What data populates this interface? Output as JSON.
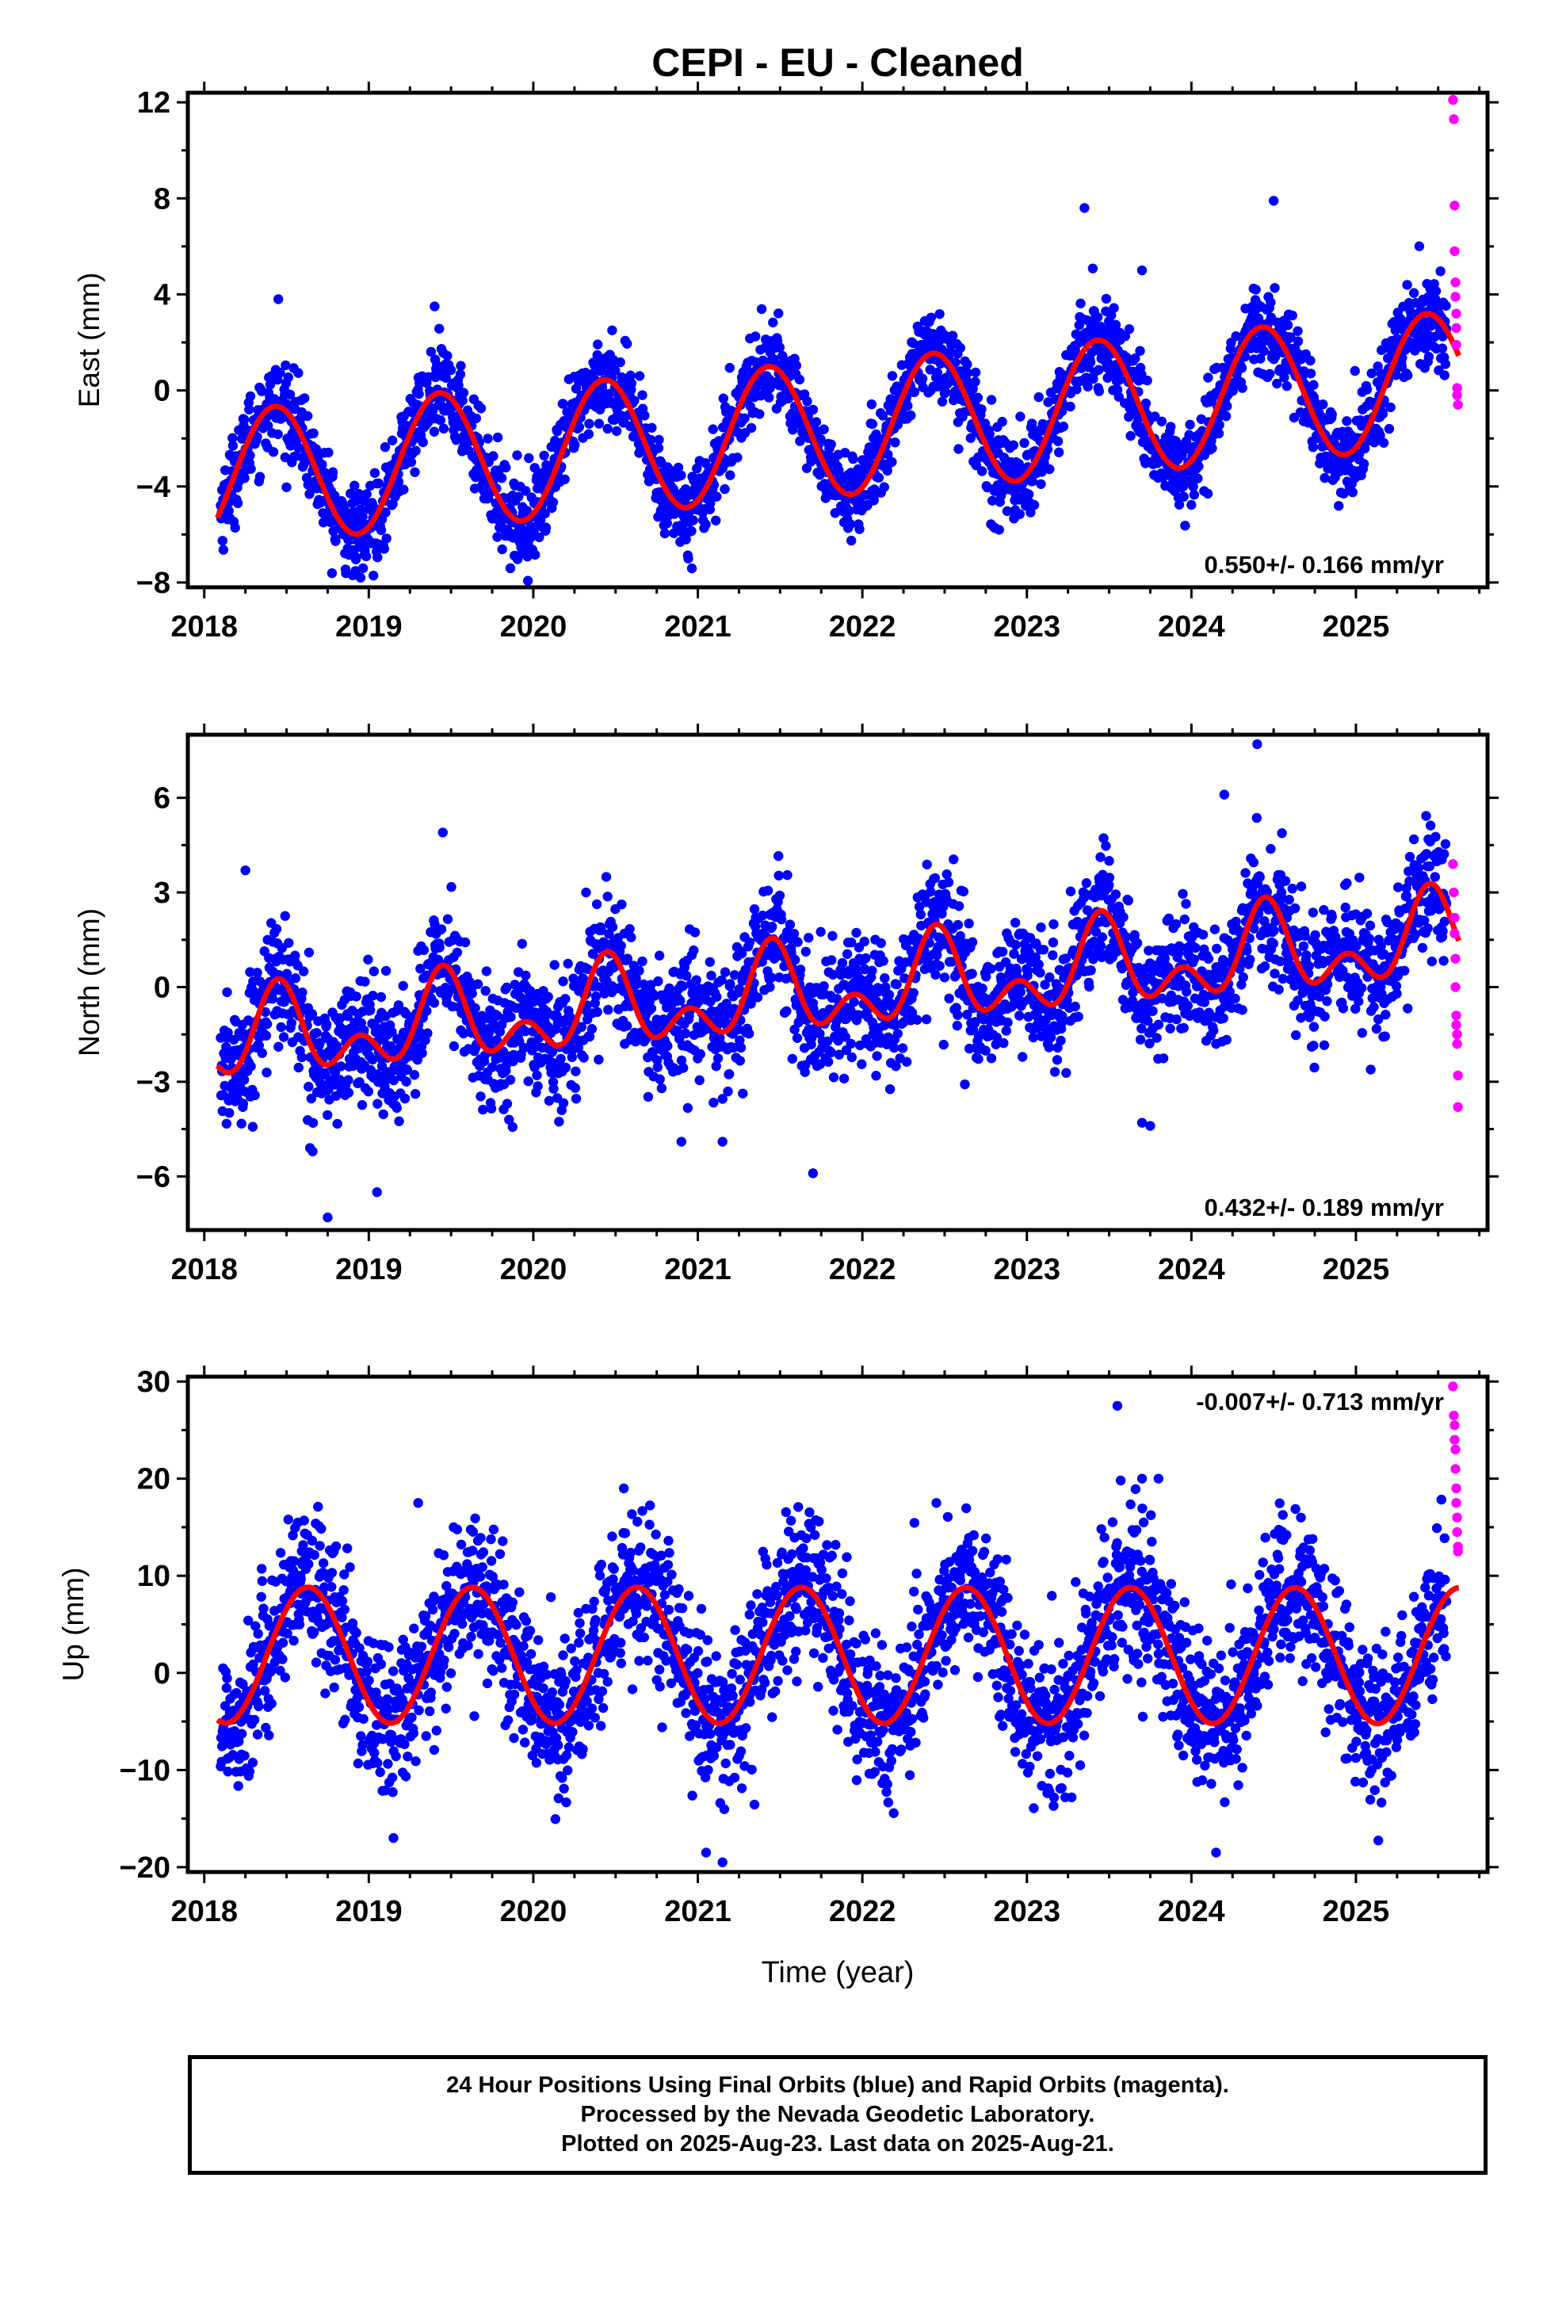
{
  "figure": {
    "title": "CEPI  - EU - Cleaned",
    "xlabel": "Time (year)",
    "colors": {
      "final": "#0000ff",
      "rapid": "#ff00ff",
      "model": "#ff0000",
      "frame": "#000000"
    }
  },
  "chart_data": [
    {
      "type": "scatter",
      "name": "east",
      "ylabel": "East (mm)",
      "xlim": [
        2017.9,
        2025.8
      ],
      "ylim": [
        -8.2,
        12.4
      ],
      "yticks": [
        -8,
        -4,
        0,
        4,
        8,
        12
      ],
      "xticks": [
        2018,
        2019,
        2020,
        2021,
        2022,
        2023,
        2024,
        2025
      ],
      "rate_label": "0.550+/- 0.166 mm/yr",
      "rate_position": "bottom-right",
      "model": {
        "offset": -1.55,
        "slope": 0.55,
        "t0": 2021.9,
        "annual_amp": 2.8,
        "annual_peak": 0.43,
        "semi_amp": 0.0,
        "semi_peak": 0.0
      },
      "noise_sd": 0.9,
      "series": [
        {
          "name": "Final Orbits",
          "color": "#0000ff",
          "x_range": [
            2018.1,
            2025.55
          ]
        },
        {
          "name": "Rapid Orbits",
          "color": "#ff00ff",
          "x": [
            2025.59,
            2025.595,
            2025.6,
            2025.6,
            2025.605,
            2025.605,
            2025.61,
            2025.61,
            2025.61,
            2025.615,
            2025.615,
            2025.62
          ],
          "y": [
            12.1,
            11.3,
            7.7,
            5.8,
            4.5,
            3.9,
            3.2,
            2.6,
            1.9,
            0.1,
            -0.2,
            -0.6
          ]
        }
      ],
      "outliers": {
        "x": [
          2018.45,
          2018.95,
          2019.9,
          2022.8,
          2023.35,
          2024.5,
          2019.4,
          2021.9,
          2023.7,
          2024.1
        ],
        "y": [
          3.8,
          -7.8,
          -6.9,
          -5.7,
          7.6,
          7.9,
          3.5,
          -4.6,
          5.0,
          -4.3
        ]
      }
    },
    {
      "type": "scatter",
      "name": "north",
      "ylabel": "North (mm)",
      "xlim": [
        2017.9,
        2025.8
      ],
      "ylim": [
        -7.7,
        8.0
      ],
      "yticks": [
        -6,
        -3,
        0,
        3,
        6
      ],
      "xticks": [
        2018,
        2019,
        2020,
        2021,
        2022,
        2023,
        2024,
        2025
      ],
      "rate_label": "0.432+/- 0.189 mm/yr",
      "rate_position": "bottom-right",
      "model": {
        "offset": -0.1,
        "slope": 0.432,
        "t0": 2021.9,
        "annual_amp": 1.0,
        "annual_peak": 0.45,
        "semi_amp": 0.85,
        "semi_peak": 0.45
      },
      "noise_sd": 1.0,
      "series": [
        {
          "name": "Final Orbits",
          "color": "#0000ff",
          "x_range": [
            2018.1,
            2025.55
          ]
        },
        {
          "name": "Rapid Orbits",
          "color": "#ff00ff",
          "x": [
            2025.59,
            2025.595,
            2025.6,
            2025.6,
            2025.605,
            2025.605,
            2025.61,
            2025.61,
            2025.615,
            2025.615,
            2025.62,
            2025.62
          ],
          "y": [
            3.9,
            3.0,
            2.2,
            1.7,
            0.9,
            0.0,
            -0.9,
            -1.2,
            -1.5,
            -1.8,
            -2.8,
            -3.8
          ]
        }
      ],
      "outliers": {
        "x": [
          2018.25,
          2018.75,
          2019.05,
          2019.45,
          2020.9,
          2021.15,
          2021.7,
          2023.5,
          2023.7,
          2023.75,
          2024.2,
          2024.4,
          2024.15
        ],
        "y": [
          3.7,
          -7.3,
          -6.5,
          4.9,
          -4.9,
          -4.9,
          -5.9,
          4.0,
          -4.3,
          -4.4,
          6.1,
          7.7,
          -1.8
        ]
      }
    },
    {
      "type": "scatter",
      "name": "up",
      "ylabel": "Up (mm)",
      "xlim": [
        2017.9,
        2025.8
      ],
      "ylim": [
        -20.5,
        30.5
      ],
      "yticks": [
        -20,
        -10,
        0,
        10,
        20,
        30
      ],
      "xticks": [
        2018,
        2019,
        2020,
        2021,
        2022,
        2023,
        2024,
        2025
      ],
      "rate_label": "-0.007+/- 0.713 mm/yr",
      "rate_position": "top-right",
      "model": {
        "offset": 1.8,
        "slope": -0.007,
        "t0": 2021.9,
        "annual_amp": 7.0,
        "annual_peak": 0.63,
        "semi_amp": 0.0,
        "semi_peak": 0.0
      },
      "noise_sd": 4.0,
      "series": [
        {
          "name": "Final Orbits",
          "color": "#0000ff",
          "x_range": [
            2018.1,
            2025.55
          ]
        },
        {
          "name": "Rapid Orbits",
          "color": "#ff00ff",
          "x": [
            2025.59,
            2025.595,
            2025.6,
            2025.6,
            2025.605,
            2025.605,
            2025.61,
            2025.61,
            2025.615,
            2025.615,
            2025.62,
            2025.62
          ],
          "y": [
            29.5,
            26.5,
            25.5,
            24.0,
            23.0,
            21.0,
            19.0,
            17.5,
            16.0,
            14.5,
            13.0,
            12.5
          ]
        }
      ],
      "outliers": {
        "x": [
          2023.55,
          2020.55,
          2021.05,
          2021.15,
          2024.15,
          2019.3,
          2022.45,
          2023.7,
          2023.8,
          2019.15
        ],
        "y": [
          27.5,
          19.0,
          -18.5,
          -19.5,
          -18.5,
          17.5,
          17.5,
          20.0,
          20.0,
          -17.0
        ]
      }
    }
  ],
  "footer": {
    "lines": [
      "24 Hour Positions Using Final Orbits (blue) and Rapid Orbits (magenta).",
      "Processed by the Nevada Geodetic Laboratory.",
      "Plotted on 2025-Aug-23. Last data on 2025-Aug-21."
    ]
  }
}
